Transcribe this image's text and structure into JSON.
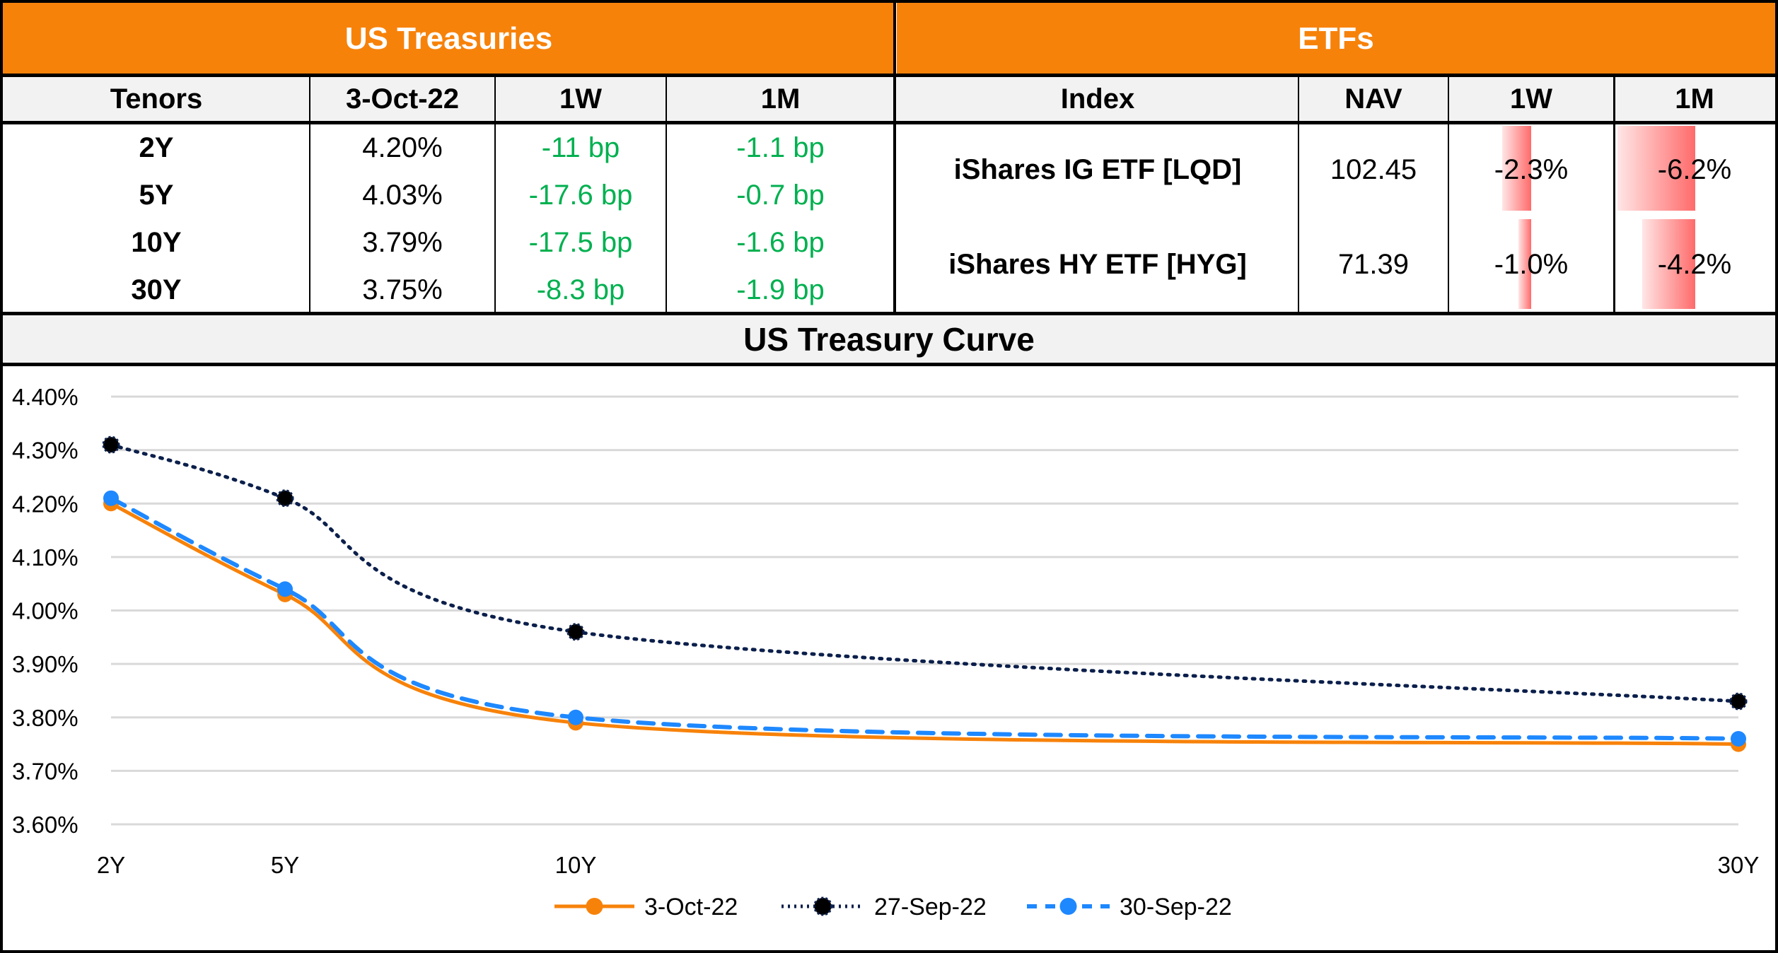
{
  "treasuries": {
    "title": "US Treasuries",
    "headers": [
      "Tenors",
      "3-Oct-22",
      "1W",
      "1M"
    ],
    "rows": [
      {
        "tenor": "2Y",
        "yield": "4.20%",
        "w1": "-11 bp",
        "m1": "-1.1 bp"
      },
      {
        "tenor": "5Y",
        "yield": "4.03%",
        "w1": "-17.6 bp",
        "m1": "-0.7 bp"
      },
      {
        "tenor": "10Y",
        "yield": "3.79%",
        "w1": "-17.5 bp",
        "m1": "-1.6 bp"
      },
      {
        "tenor": "30Y",
        "yield": "3.75%",
        "w1": "-8.3 bp",
        "m1": "-1.9 bp"
      }
    ]
  },
  "etfs": {
    "title": "ETFs",
    "headers": [
      "Index",
      "NAV",
      "1W",
      "1M"
    ],
    "rows": [
      {
        "name": "iShares IG ETF [LQD]",
        "nav": "102.45",
        "w1": "-2.3%",
        "m1": "-6.2%",
        "w1_value": -2.3,
        "m1_value": -6.2
      },
      {
        "name": "iShares HY ETF [HYG]",
        "nav": "71.39",
        "w1": "-1.0%",
        "m1": "-4.2%",
        "w1_value": -1.0,
        "m1_value": -4.2
      }
    ]
  },
  "colors": {
    "header_orange": "#F7820A",
    "positive_green": "#00B050",
    "databar_red": "#FF6B6B",
    "series_3oct": "#F7820A",
    "series_27sep": "#0B1F4B",
    "series_30sep": "#1E88FF"
  },
  "chart_data": {
    "type": "line",
    "title": "US Treasury Curve",
    "xlabel": "",
    "ylabel": "",
    "categories": [
      "2Y",
      "5Y",
      "10Y",
      "30Y"
    ],
    "x_numeric": [
      2,
      5,
      10,
      30
    ],
    "ylim": [
      3.6,
      4.4
    ],
    "yticks": [
      "4.40%",
      "4.30%",
      "4.20%",
      "4.10%",
      "4.00%",
      "3.90%",
      "3.80%",
      "3.70%",
      "3.60%"
    ],
    "ytick_values": [
      4.4,
      4.3,
      4.2,
      4.1,
      4.0,
      3.9,
      3.8,
      3.7,
      3.6
    ],
    "grid": true,
    "legend_position": "bottom",
    "series": [
      {
        "name": "3-Oct-22",
        "style": "solid",
        "values": [
          4.2,
          4.03,
          3.79,
          3.75
        ]
      },
      {
        "name": "27-Sep-22",
        "style": "dotted",
        "values": [
          4.31,
          4.21,
          3.96,
          3.83
        ]
      },
      {
        "name": "30-Sep-22",
        "style": "dashed",
        "values": [
          4.21,
          4.04,
          3.8,
          3.76
        ]
      }
    ]
  }
}
